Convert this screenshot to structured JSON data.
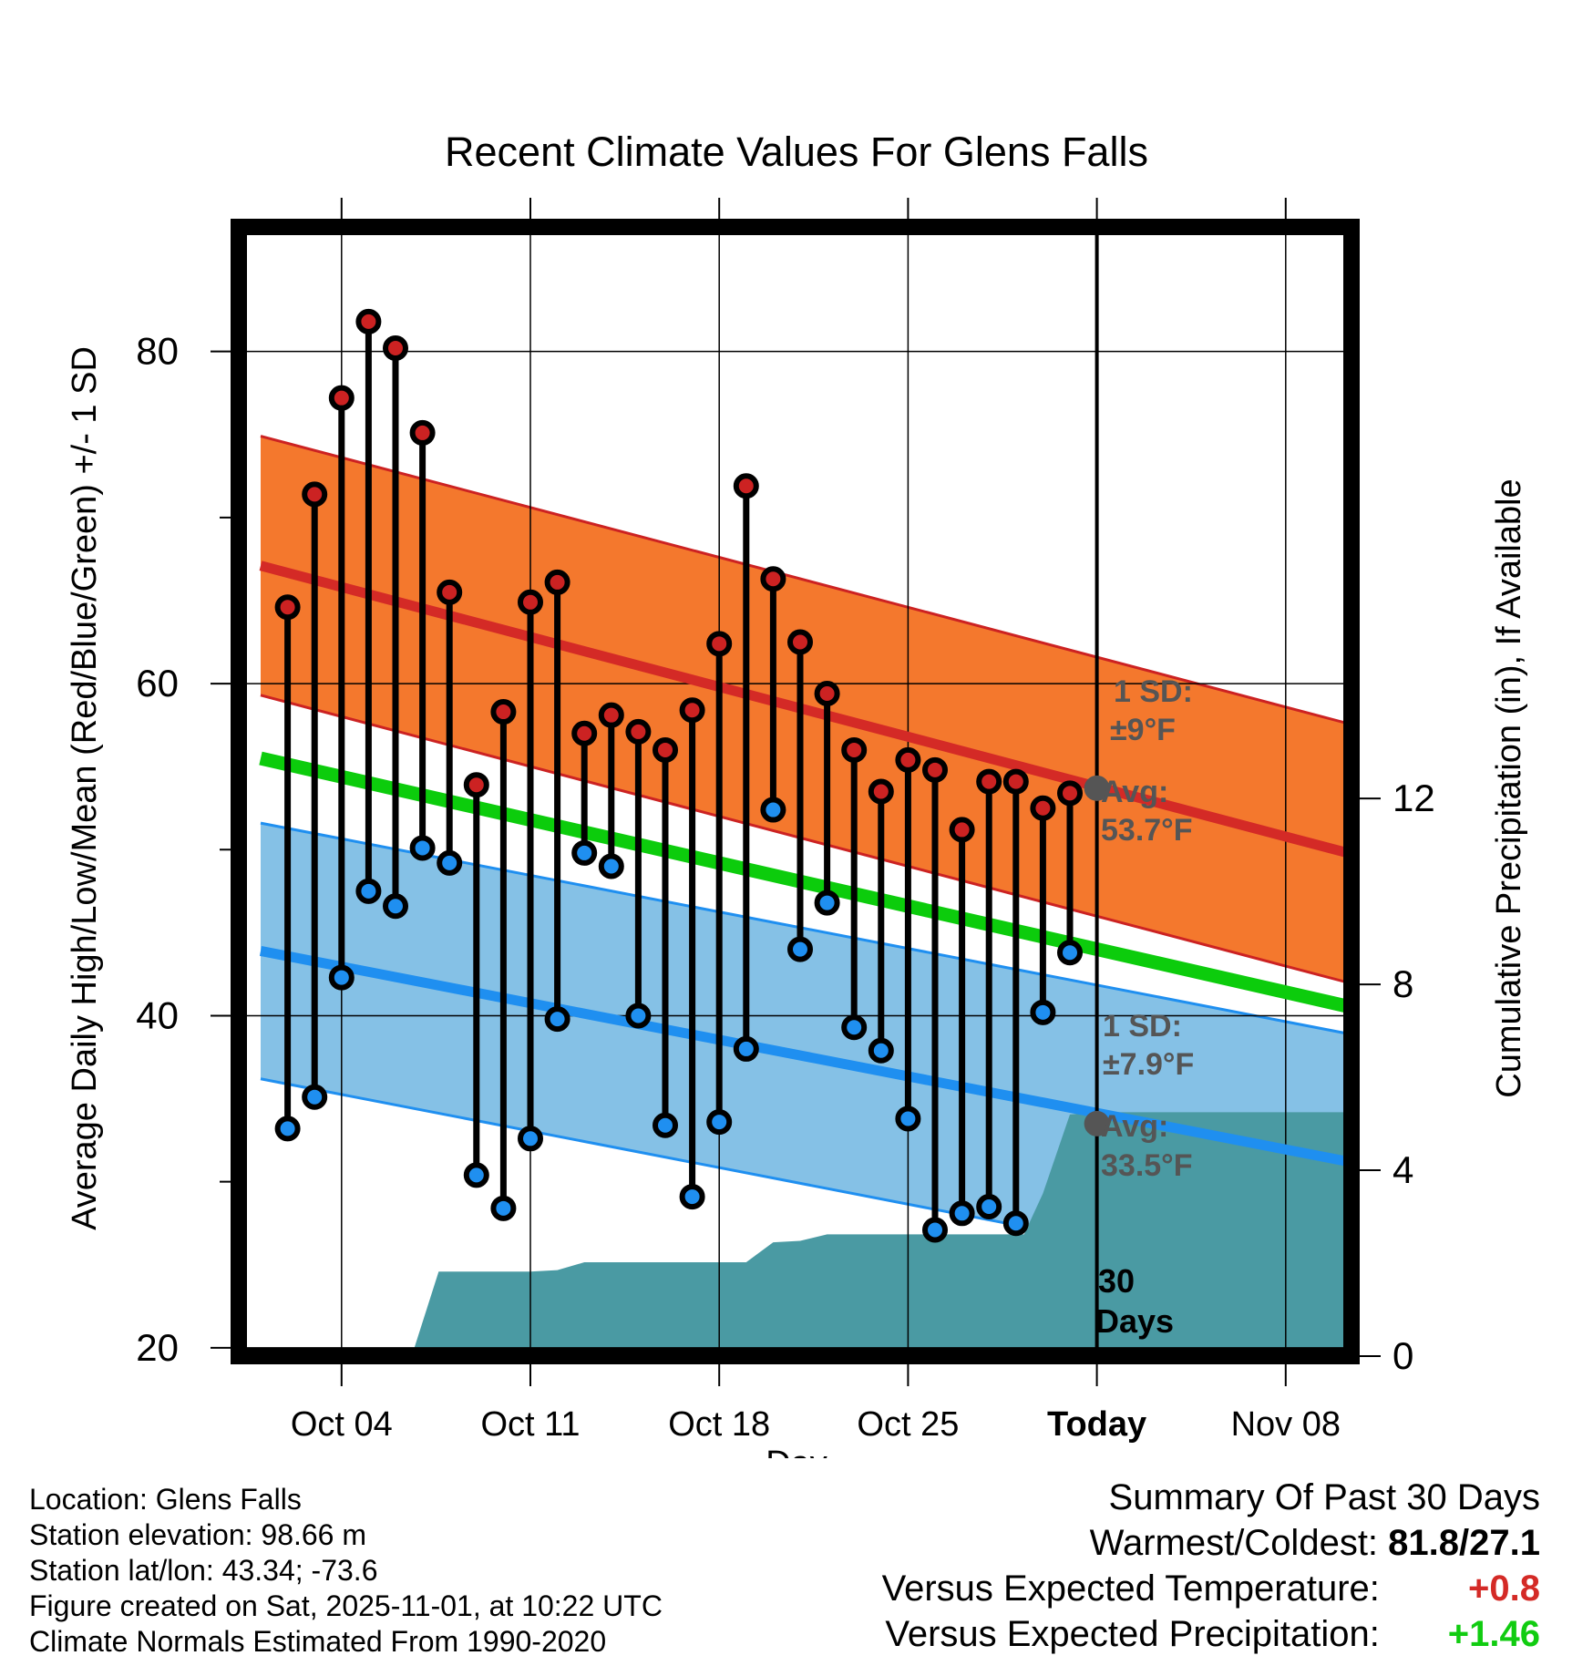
{
  "chart_data": {
    "type": "line",
    "title": "Recent Climate Values For Glens Falls",
    "xlabel": "Day",
    "ylabel": "Average Daily High/Low/Mean (Red/Blue/Green) +/- 1 SD",
    "y2label": "Cumulative Precipitation (in), If Available",
    "xlim": [
      0,
      41
    ],
    "ylim": [
      19.5,
      87.5
    ],
    "y2lim": [
      0,
      24.3
    ],
    "x_ticks": [
      {
        "x": 3,
        "label": "Oct 04"
      },
      {
        "x": 10,
        "label": "Oct 11"
      },
      {
        "x": 17,
        "label": "Oct 18"
      },
      {
        "x": 24,
        "label": "Oct 25"
      },
      {
        "x": 31,
        "label": "Today"
      },
      {
        "x": 38,
        "label": "Nov 08"
      }
    ],
    "y_ticks": [
      20,
      40,
      60,
      80
    ],
    "y_minor_ticks": [
      30,
      50,
      70
    ],
    "y2_ticks": [
      0,
      4,
      8,
      12
    ],
    "today_x": 31,
    "daily": [
      {
        "day": 1,
        "high": 64.6,
        "low": 33.2
      },
      {
        "day": 2,
        "high": 71.4,
        "low": 35.1
      },
      {
        "day": 3,
        "high": 77.2,
        "low": 42.3
      },
      {
        "day": 4,
        "high": 81.8,
        "low": 47.5
      },
      {
        "day": 5,
        "high": 80.2,
        "low": 46.6
      },
      {
        "day": 6,
        "high": 75.1,
        "low": 50.1
      },
      {
        "day": 7,
        "high": 65.5,
        "low": 49.2
      },
      {
        "day": 8,
        "high": 53.9,
        "low": 30.4
      },
      {
        "day": 9,
        "high": 58.3,
        "low": 28.4
      },
      {
        "day": 10,
        "high": 64.9,
        "low": 32.6
      },
      {
        "day": 11,
        "high": 66.1,
        "low": 39.8
      },
      {
        "day": 12,
        "high": 57.0,
        "low": 49.8
      },
      {
        "day": 13,
        "high": 58.1,
        "low": 49.0
      },
      {
        "day": 14,
        "high": 57.1,
        "low": 40.0
      },
      {
        "day": 15,
        "high": 56.0,
        "low": 33.4
      },
      {
        "day": 16,
        "high": 58.4,
        "low": 29.1
      },
      {
        "day": 17,
        "high": 62.4,
        "low": 33.6
      },
      {
        "day": 18,
        "high": 71.9,
        "low": 38.0
      },
      {
        "day": 19,
        "high": 66.3,
        "low": 52.4
      },
      {
        "day": 20,
        "high": 62.5,
        "low": 44.0
      },
      {
        "day": 21,
        "high": 59.4,
        "low": 46.8
      },
      {
        "day": 22,
        "high": 56.0,
        "low": 39.3
      },
      {
        "day": 23,
        "high": 53.5,
        "low": 37.9
      },
      {
        "day": 24,
        "high": 55.4,
        "low": 33.8
      },
      {
        "day": 25,
        "high": 54.8,
        "low": 27.1
      },
      {
        "day": 26,
        "high": 51.2,
        "low": 28.1
      },
      {
        "day": 27,
        "high": 54.1,
        "low": 28.5
      },
      {
        "day": 28,
        "high": 54.1,
        "low": 27.5
      },
      {
        "day": 29,
        "high": 52.5,
        "low": 40.2
      },
      {
        "day": 30,
        "high": 53.4,
        "low": 43.8
      }
    ],
    "normals": {
      "high_start": 67.1,
      "high_end": 49.5,
      "high_sd": 7.8,
      "low_start": 43.9,
      "low_end": 31.0,
      "low_sd": 7.7,
      "mean_start": 55.5,
      "mean_end": 40.3
    },
    "precip_cumulative": [
      {
        "x": 0,
        "y": 0
      },
      {
        "x": 5.6,
        "y": 0
      },
      {
        "x": 6.6,
        "y": 1.82
      },
      {
        "x": 10,
        "y": 1.82
      },
      {
        "x": 11,
        "y": 1.85
      },
      {
        "x": 12,
        "y": 2.02
      },
      {
        "x": 17,
        "y": 2.02
      },
      {
        "x": 18,
        "y": 2.02
      },
      {
        "x": 19,
        "y": 2.45
      },
      {
        "x": 20,
        "y": 2.48
      },
      {
        "x": 21,
        "y": 2.62
      },
      {
        "x": 27,
        "y": 2.62
      },
      {
        "x": 28.3,
        "y": 2.62
      },
      {
        "x": 29,
        "y": 3.5
      },
      {
        "x": 30,
        "y": 5.2
      },
      {
        "x": 31,
        "y": 5.25
      },
      {
        "x": 41,
        "y": 5.25
      }
    ],
    "annotations": {
      "high_sd_label": "1 SD:",
      "high_sd_value": "±9°F",
      "high_avg_label": "Avg:",
      "high_avg_value": "53.7°F",
      "high_avg": 53.7,
      "low_sd_label": "1 SD:",
      "low_sd_value": "±7.9°F",
      "low_avg_label": "Avg:",
      "low_avg_value": "33.5°F",
      "low_avg": 33.5,
      "period_number": "30",
      "period_unit": "Days"
    },
    "colors": {
      "high_band": "#f4782d",
      "high_line": "#d42a26",
      "high_edge": "#cc2222",
      "low_band": "#85c1e6",
      "low_line": "#1f8ff0",
      "mean_line": "#0ccc0c",
      "precip": "#4a9aa3",
      "high_dot": "#cc2222",
      "low_dot": "#1f8ff0",
      "annotation": "#555555"
    }
  },
  "footer": {
    "location": "Location: Glens Falls",
    "elevation": "Station elevation: 98.66 m",
    "latlon": "Station lat/lon: 43.34; -73.6",
    "created": "Figure created on Sat, 2025-11-01, at 10:22 UTC",
    "normals": "Climate Normals Estimated From 1990-2020"
  },
  "summary": {
    "title": "Summary Of Past 30 Days",
    "warm_cold_label": "Warmest/Coldest:",
    "warm_cold_value": "81.8/27.1",
    "temp_label": "Versus Expected Temperature:",
    "temp_value": "+0.8",
    "temp_color": "#d42a26",
    "precip_label": "Versus Expected Precipitation:",
    "precip_value": "+1.46",
    "precip_color": "#11cc11"
  }
}
